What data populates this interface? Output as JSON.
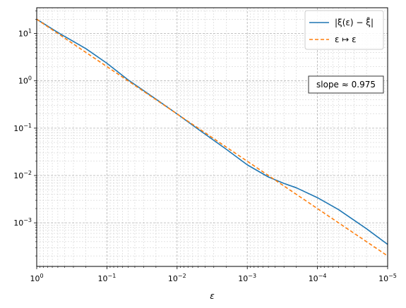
{
  "chart_data": {
    "type": "line",
    "title": "",
    "xlabel": "ε",
    "ylabel": "",
    "x_scale": "log",
    "y_scale": "log",
    "x_reversed": true,
    "xlim": [
      1,
      1e-05
    ],
    "ylim": [
      0.00012,
      35
    ],
    "grid": "major and minor, dashed gray",
    "legend": "top-right",
    "x_ticks": [
      {
        "value": 1,
        "base": "10",
        "exp": "0"
      },
      {
        "value": 0.1,
        "base": "10",
        "exp": "−1"
      },
      {
        "value": 0.01,
        "base": "10",
        "exp": "−2"
      },
      {
        "value": 0.001,
        "base": "10",
        "exp": "−3"
      },
      {
        "value": 0.0001,
        "base": "10",
        "exp": "−4"
      },
      {
        "value": 1e-05,
        "base": "10",
        "exp": "−5"
      }
    ],
    "y_ticks": [
      {
        "value": 10,
        "base": "10",
        "exp": "1"
      },
      {
        "value": 1,
        "base": "10",
        "exp": "0"
      },
      {
        "value": 0.1,
        "base": "10",
        "exp": "−1"
      },
      {
        "value": 0.01,
        "base": "10",
        "exp": "−2"
      },
      {
        "value": 0.001,
        "base": "10",
        "exp": "−3"
      }
    ],
    "series": [
      {
        "name": "|ξ(ε) − ξ̄|",
        "color": "#1f77b4",
        "style": "solid",
        "x": [
          1,
          0.5,
          0.2,
          0.1,
          0.05,
          0.02,
          0.01,
          0.005,
          0.002,
          0.001,
          0.0005,
          0.0003,
          0.0002,
          0.0001,
          5e-05,
          2e-05,
          1e-05
        ],
        "y": [
          20,
          10.5,
          4.8,
          2.35,
          1.05,
          0.41,
          0.2,
          0.095,
          0.036,
          0.0168,
          0.0093,
          0.0068,
          0.0055,
          0.0034,
          0.0019,
          0.00075,
          0.00035
        ]
      },
      {
        "name": "ε ↦ ε",
        "color": "#ff7f0e",
        "style": "dashed",
        "x": [
          1,
          1e-05
        ],
        "y": [
          20,
          0.0002
        ]
      }
    ],
    "annotations": [
      {
        "text": "slope ≈ 0.975"
      }
    ]
  }
}
